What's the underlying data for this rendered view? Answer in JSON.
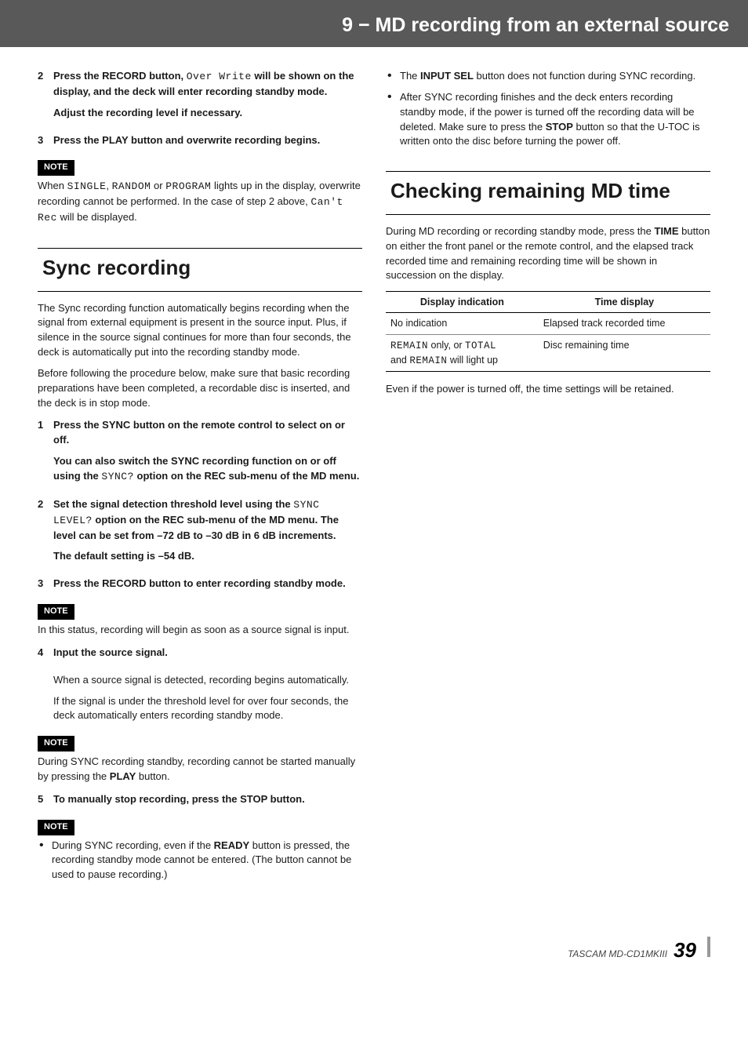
{
  "header": {
    "title": "9 − MD recording from an external source"
  },
  "left": {
    "step2": {
      "num": "2",
      "pre": "Press the RECORD button, ",
      "mono": "Over Write",
      "mid": " will be shown on the display, and the deck will enter recording standby mode.",
      "line2": "Adjust the recording level if necessary."
    },
    "step3": {
      "num": "3",
      "text": "Press the PLAY button and overwrite recording begins."
    },
    "note1_label": "NOTE",
    "note1": {
      "pre": "When ",
      "m1": "SINGLE",
      "sep1": ", ",
      "m2": "RANDOM",
      "sep2": " or ",
      "m3": "PROGRAM",
      "mid": " lights up in the display, overwrite recording cannot be performed. In the case of step 2 above, ",
      "m4": "Can't Rec",
      "post": " will be displayed."
    },
    "sync_heading": "Sync recording",
    "sync_para1": "The Sync recording function automatically begins recording when the signal from external equipment is present in the source input. Plus, if silence in the source signal continues for more than four seconds, the deck is automatically put into the recording standby mode.",
    "sync_para2": "Before following the procedure below, make sure that basic recording preparations have been completed, a recordable disc is inserted, and the deck is in stop mode.",
    "sstep1": {
      "num": "1",
      "line1": "Press the SYNC button on the remote control to select on or off.",
      "line2_pre": "You can also switch the SYNC recording function on or off using the ",
      "line2_mono": "SYNC?",
      "line2_post": " option on the REC sub-menu of the MD menu."
    },
    "sstep2": {
      "num": "2",
      "pre": "Set the signal detection threshold level using the ",
      "mono": "SYNC LEVEL?",
      "post": " option on the REC sub-menu of the MD menu. The level can be set from –72 dB to –30 dB in 6 dB increments.",
      "line2": "The default setting is –54 dB."
    },
    "sstep3": {
      "num": "3",
      "text": "Press the RECORD button to enter recording standby mode."
    },
    "note2_label": "NOTE",
    "note2_text": "In this status, recording will begin as soon as a source signal is input.",
    "sstep4": {
      "num": "4",
      "line1": "Input the source signal.",
      "line2": "When a source signal is detected, recording begins automatically.",
      "line3": "If the signal is under the threshold level for over four seconds, the deck automatically enters recording standby mode."
    },
    "note3_label": "NOTE",
    "note3": {
      "pre": "During SYNC recording standby, recording cannot be started manually by pressing the ",
      "bold": "PLAY",
      "post": " button."
    },
    "sstep5": {
      "num": "5",
      "text": "To manually stop recording, press the STOP button."
    },
    "note4_label": "NOTE",
    "bullet1": {
      "pre": "During SYNC recording, even if the ",
      "bold": "READY",
      "post": " button is pressed, the recording standby mode cannot be entered. (The button cannot be used to pause recording.)"
    }
  },
  "right": {
    "bullet2": {
      "pre": "The ",
      "bold": "INPUT SEL",
      "post": " button does not function during SYNC recording."
    },
    "bullet3": {
      "pre": "After SYNC recording finishes and the deck enters recording standby mode, if the power is turned off the recording data will be deleted. Make sure to press the ",
      "bold": "STOP",
      "post": " button so that the U-TOC is written onto the disc before turning the power off."
    },
    "check_heading": "Checking remaining MD time",
    "check_para": {
      "pre": "During MD recording or recording standby mode, press the ",
      "bold": "TIME",
      "post": " button on either the front panel or the remote control, and the elapsed track recorded time and remaining recording time will be shown in succession on the display."
    },
    "table": {
      "h1": "Display indication",
      "h2": "Time display",
      "r1c1": "No indication",
      "r1c2": "Elapsed track recorded time",
      "r2c1_m1": "REMAIN",
      "r2c1_mid": " only, or ",
      "r2c1_m2": "TOTAL",
      "r2c1_line2_pre": "and ",
      "r2c1_line2_m": "REMAIN",
      "r2c1_line2_post": " will light up",
      "r2c2": "Disc remaining time"
    },
    "final_para": "Even if the power is turned off, the time settings will be retained."
  },
  "footer": {
    "model": "TASCAM MD-CD1MKIII",
    "page": "39"
  }
}
